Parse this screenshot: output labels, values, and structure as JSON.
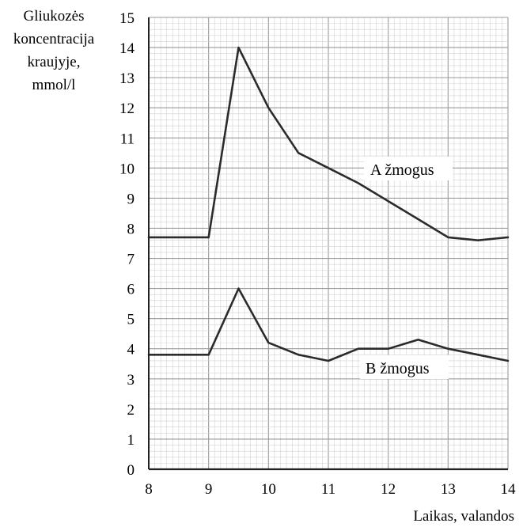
{
  "chart_data": {
    "type": "line",
    "title": "",
    "ylabel_lines": [
      "Gliukozės",
      "koncentracija",
      "kraujyje,",
      "mmol/l"
    ],
    "xlabel": "Laikas, valandos",
    "xlim": [
      8,
      14
    ],
    "ylim": [
      0,
      15
    ],
    "x_ticks": [
      "8",
      "9",
      "10",
      "11",
      "12",
      "13",
      "14"
    ],
    "y_ticks": [
      "0",
      "1",
      "2",
      "3",
      "4",
      "5",
      "6",
      "7",
      "8",
      "9",
      "10",
      "11",
      "12",
      "13",
      "14",
      "15"
    ],
    "grid": true,
    "series": [
      {
        "name": "A žmogus",
        "x": [
          8,
          9,
          9.5,
          10,
          10.5,
          11,
          11.5,
          12,
          12.5,
          13,
          13.5,
          14
        ],
        "values": [
          7.7,
          7.7,
          14.0,
          12.0,
          10.5,
          10.0,
          9.5,
          8.9,
          8.3,
          7.7,
          7.6,
          7.7
        ]
      },
      {
        "name": "B žmogus",
        "x": [
          8,
          9,
          9.5,
          10,
          10.5,
          11,
          11.5,
          12,
          12.5,
          13,
          13.5,
          14
        ],
        "values": [
          3.8,
          3.8,
          6.0,
          4.2,
          3.8,
          3.6,
          4.0,
          4.0,
          4.3,
          4.0,
          3.8,
          3.6
        ]
      }
    ]
  },
  "colors": {
    "line": "#2b2b2b",
    "grid_minor": "#d2d2d2",
    "grid_major": "#9a9a9a",
    "axis": "#222222"
  }
}
